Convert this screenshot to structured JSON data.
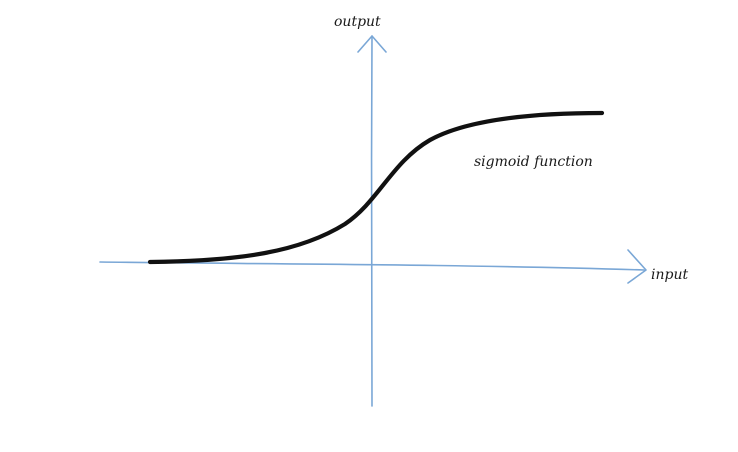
{
  "labels": {
    "y_axis": "output",
    "x_axis": "input",
    "curve": "sigmoid function"
  },
  "colors": {
    "axis": "#7aa7d6",
    "curve": "#111111",
    "text": "#1a1a1a",
    "background": "#ffffff"
  }
}
